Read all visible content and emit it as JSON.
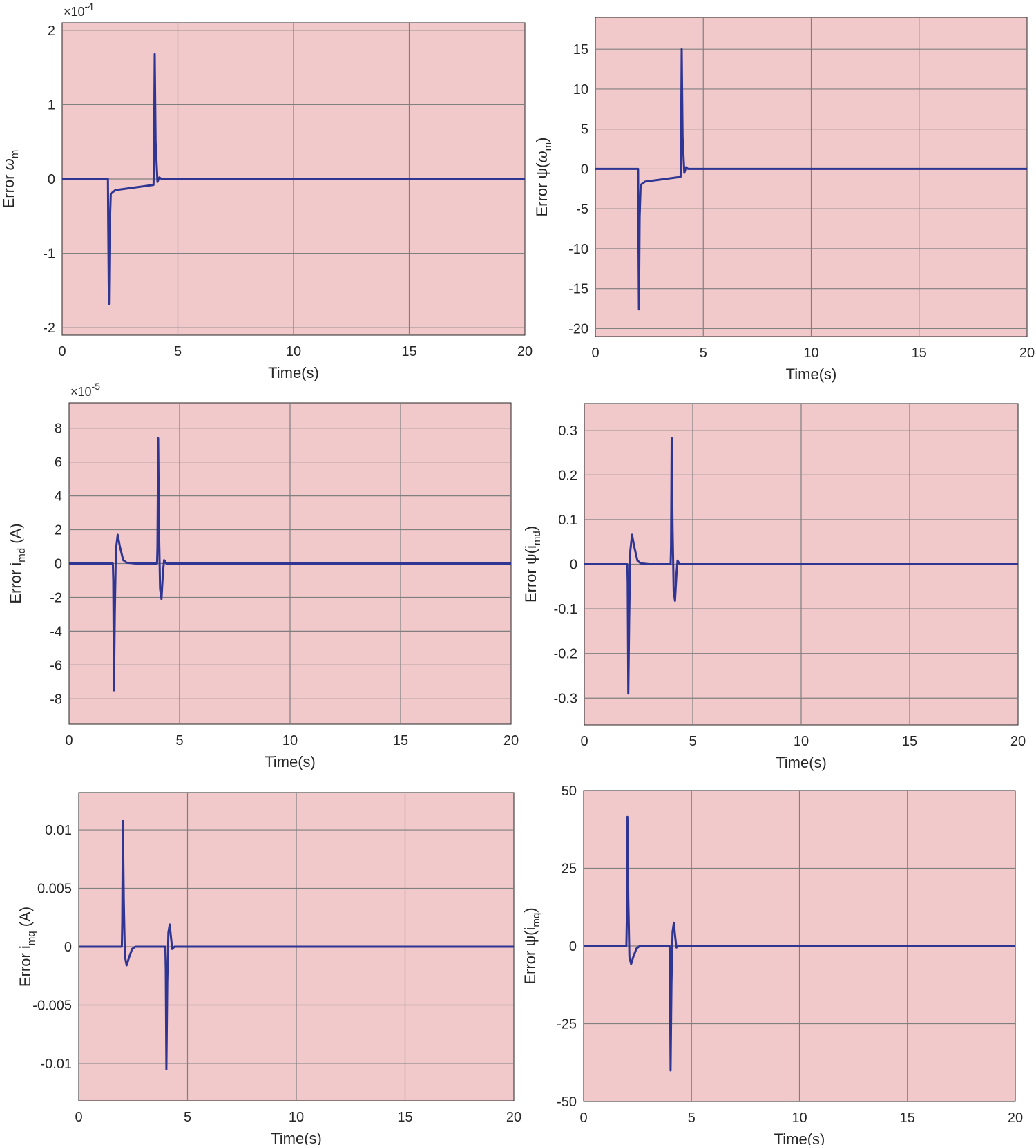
{
  "figure": {
    "line_color": "#2e3592",
    "plot_background": "#f2c9cb"
  },
  "chart_data": [
    {
      "type": "line",
      "title": "",
      "xlabel": "Time(s)",
      "ylabel_prefix": "Error ",
      "ylabel_symbol": "ω",
      "ylabel_sub": "m",
      "ylabel_suffix": "",
      "multiplier": "×10",
      "multiplier_exp": "-4",
      "xlim": [
        0,
        20
      ],
      "ylim": [
        -2.1,
        2.1
      ],
      "xticks": [
        0,
        5,
        10,
        15,
        20
      ],
      "xtick_labels": [
        "0",
        "5",
        "10",
        "15",
        "20"
      ],
      "yticks": [
        -2,
        -1,
        0,
        1,
        2
      ],
      "ytick_labels": [
        "-2",
        "-1",
        "0",
        "1",
        "2"
      ],
      "grid": true,
      "series": [
        {
          "name": "Error ω_m",
          "x": [
            0,
            1.98,
            1.99,
            2.02,
            2.05,
            2.1,
            2.3,
            3.95,
            3.97,
            4.0,
            4.04,
            4.12,
            4.2,
            4.3,
            20
          ],
          "y": [
            0,
            0,
            -0.6,
            -1.68,
            -0.7,
            -0.2,
            -0.15,
            -0.08,
            0.3,
            1.68,
            0.5,
            -0.04,
            0.02,
            0,
            0
          ]
        }
      ]
    },
    {
      "type": "line",
      "title": "",
      "xlabel": "Time(s)",
      "ylabel_prefix": "Error ψ(",
      "ylabel_symbol": "ω",
      "ylabel_sub": "m",
      "ylabel_suffix": ")",
      "multiplier": "",
      "multiplier_exp": "",
      "xlim": [
        0,
        20
      ],
      "ylim": [
        -21,
        19
      ],
      "xticks": [
        0,
        5,
        10,
        15,
        20
      ],
      "xtick_labels": [
        "0",
        "5",
        "10",
        "15",
        "20"
      ],
      "yticks": [
        -20,
        -15,
        -10,
        -5,
        0,
        5,
        10,
        15
      ],
      "ytick_labels": [
        "-20",
        "-15",
        "-10",
        "-5",
        "0",
        "5",
        "10",
        "15"
      ],
      "grid": true,
      "series": [
        {
          "name": "Error ψ(ω_m)",
          "x": [
            0,
            1.98,
            1.99,
            2.02,
            2.05,
            2.1,
            2.3,
            3.95,
            3.97,
            4.0,
            4.04,
            4.12,
            4.2,
            4.3,
            20
          ],
          "y": [
            0,
            0,
            -6,
            -17.6,
            -6,
            -2,
            -1.6,
            -1,
            3,
            15,
            4,
            -0.5,
            0.2,
            0,
            0
          ]
        }
      ]
    },
    {
      "type": "line",
      "title": "",
      "xlabel": "Time(s)",
      "ylabel_prefix": "Error i",
      "ylabel_symbol": "",
      "ylabel_sub": "md",
      "ylabel_suffix": " (A)",
      "multiplier": "×10",
      "multiplier_exp": "-5",
      "xlim": [
        0,
        20
      ],
      "ylim": [
        -9.5,
        9.5
      ],
      "xticks": [
        0,
        5,
        10,
        15,
        20
      ],
      "xtick_labels": [
        "0",
        "5",
        "10",
        "15",
        "20"
      ],
      "yticks": [
        -8,
        -6,
        -4,
        -2,
        0,
        2,
        4,
        6,
        8
      ],
      "ytick_labels": [
        "-8",
        "-6",
        "-4",
        "-2",
        "0",
        "2",
        "4",
        "6",
        "8"
      ],
      "grid": true,
      "series": [
        {
          "name": "Error i_md",
          "x": [
            0,
            1.98,
            2.0,
            2.03,
            2.07,
            2.12,
            2.2,
            2.3,
            2.45,
            2.6,
            3.0,
            3.98,
            4.0,
            4.03,
            4.07,
            4.12,
            4.18,
            4.25,
            4.3,
            4.4,
            20
          ],
          "y": [
            0,
            0,
            -1,
            -7.5,
            -3,
            0.8,
            1.7,
            1.0,
            0.2,
            0.05,
            0,
            0,
            1,
            7.4,
            2,
            -1.5,
            -2.1,
            -0.5,
            0.2,
            0,
            0
          ]
        }
      ]
    },
    {
      "type": "line",
      "title": "",
      "xlabel": "Time(s)",
      "ylabel_prefix": "Error ψ(i",
      "ylabel_symbol": "",
      "ylabel_sub": "md",
      "ylabel_suffix": ")",
      "multiplier": "",
      "multiplier_exp": "",
      "xlim": [
        0,
        20
      ],
      "ylim": [
        -0.36,
        0.36
      ],
      "xticks": [
        0,
        5,
        10,
        15,
        20
      ],
      "xtick_labels": [
        "0",
        "5",
        "10",
        "15",
        "20"
      ],
      "yticks": [
        -0.3,
        -0.2,
        -0.1,
        0,
        0.1,
        0.2,
        0.3
      ],
      "ytick_labels": [
        "-0.3",
        "-0.2",
        "-0.1",
        "0",
        "0.1",
        "0.2",
        "0.3"
      ],
      "grid": true,
      "series": [
        {
          "name": "Error ψ(i_md)",
          "x": [
            0,
            1.98,
            2.0,
            2.03,
            2.07,
            2.12,
            2.2,
            2.3,
            2.45,
            2.6,
            3.0,
            3.98,
            4.0,
            4.03,
            4.07,
            4.12,
            4.18,
            4.25,
            4.3,
            4.4,
            20
          ],
          "y": [
            0,
            0,
            -0.04,
            -0.29,
            -0.12,
            0.03,
            0.066,
            0.04,
            0.008,
            0.002,
            0,
            0,
            0.04,
            0.283,
            0.08,
            -0.06,
            -0.082,
            -0.02,
            0.008,
            0,
            0
          ]
        }
      ]
    },
    {
      "type": "line",
      "title": "",
      "xlabel": "Time(s)",
      "ylabel_prefix": "Error i",
      "ylabel_symbol": "",
      "ylabel_sub": "mq",
      "ylabel_suffix": " (A)",
      "multiplier": "",
      "multiplier_exp": "",
      "xlim": [
        0,
        20
      ],
      "ylim": [
        -0.0132,
        0.0132
      ],
      "xticks": [
        0,
        5,
        10,
        15,
        20
      ],
      "xtick_labels": [
        "0",
        "5",
        "10",
        "15",
        "20"
      ],
      "yticks": [
        -0.01,
        -0.005,
        0,
        0.005,
        0.01
      ],
      "ytick_labels": [
        "-0.01",
        "-0.005",
        "0",
        "0.005",
        "0.01"
      ],
      "grid": true,
      "series": [
        {
          "name": "Error i_mq",
          "x": [
            0,
            1.98,
            2.0,
            2.03,
            2.07,
            2.12,
            2.2,
            2.3,
            2.45,
            2.6,
            3.0,
            3.98,
            4.0,
            4.03,
            4.07,
            4.12,
            4.18,
            4.25,
            4.3,
            4.4,
            20
          ],
          "y": [
            0,
            0,
            0.002,
            0.0108,
            0.004,
            -0.0008,
            -0.0016,
            -0.001,
            -0.0002,
            0,
            0,
            0,
            -0.002,
            -0.0105,
            -0.003,
            0.0012,
            0.0019,
            0.0006,
            -0.0002,
            0,
            0
          ]
        }
      ]
    },
    {
      "type": "line",
      "title": "",
      "xlabel": "Time(s)",
      "ylabel_prefix": "Error ψ(i",
      "ylabel_symbol": "",
      "ylabel_sub": "mq",
      "ylabel_suffix": ")",
      "multiplier": "",
      "multiplier_exp": "",
      "xlim": [
        0,
        20
      ],
      "ylim": [
        -50,
        50
      ],
      "xticks": [
        0,
        5,
        10,
        15,
        20
      ],
      "xtick_labels": [
        "0",
        "5",
        "10",
        "15",
        "20"
      ],
      "yticks": [
        -50,
        -25,
        0,
        25,
        50
      ],
      "ytick_labels": [
        "-50",
        "-25",
        "0",
        "25",
        "50"
      ],
      "grid": true,
      "series": [
        {
          "name": "Error ψ(i_mq)",
          "x": [
            0,
            1.98,
            2.0,
            2.03,
            2.07,
            2.12,
            2.2,
            2.3,
            2.45,
            2.6,
            3.0,
            3.98,
            4.0,
            4.03,
            4.07,
            4.12,
            4.18,
            4.25,
            4.3,
            4.4,
            20
          ],
          "y": [
            0,
            0,
            8,
            41.5,
            15,
            -3.5,
            -5.8,
            -3.5,
            -0.8,
            0,
            0,
            0,
            -8,
            -40,
            -12,
            4.5,
            7.5,
            2.5,
            -0.5,
            0,
            0
          ]
        }
      ]
    }
  ]
}
